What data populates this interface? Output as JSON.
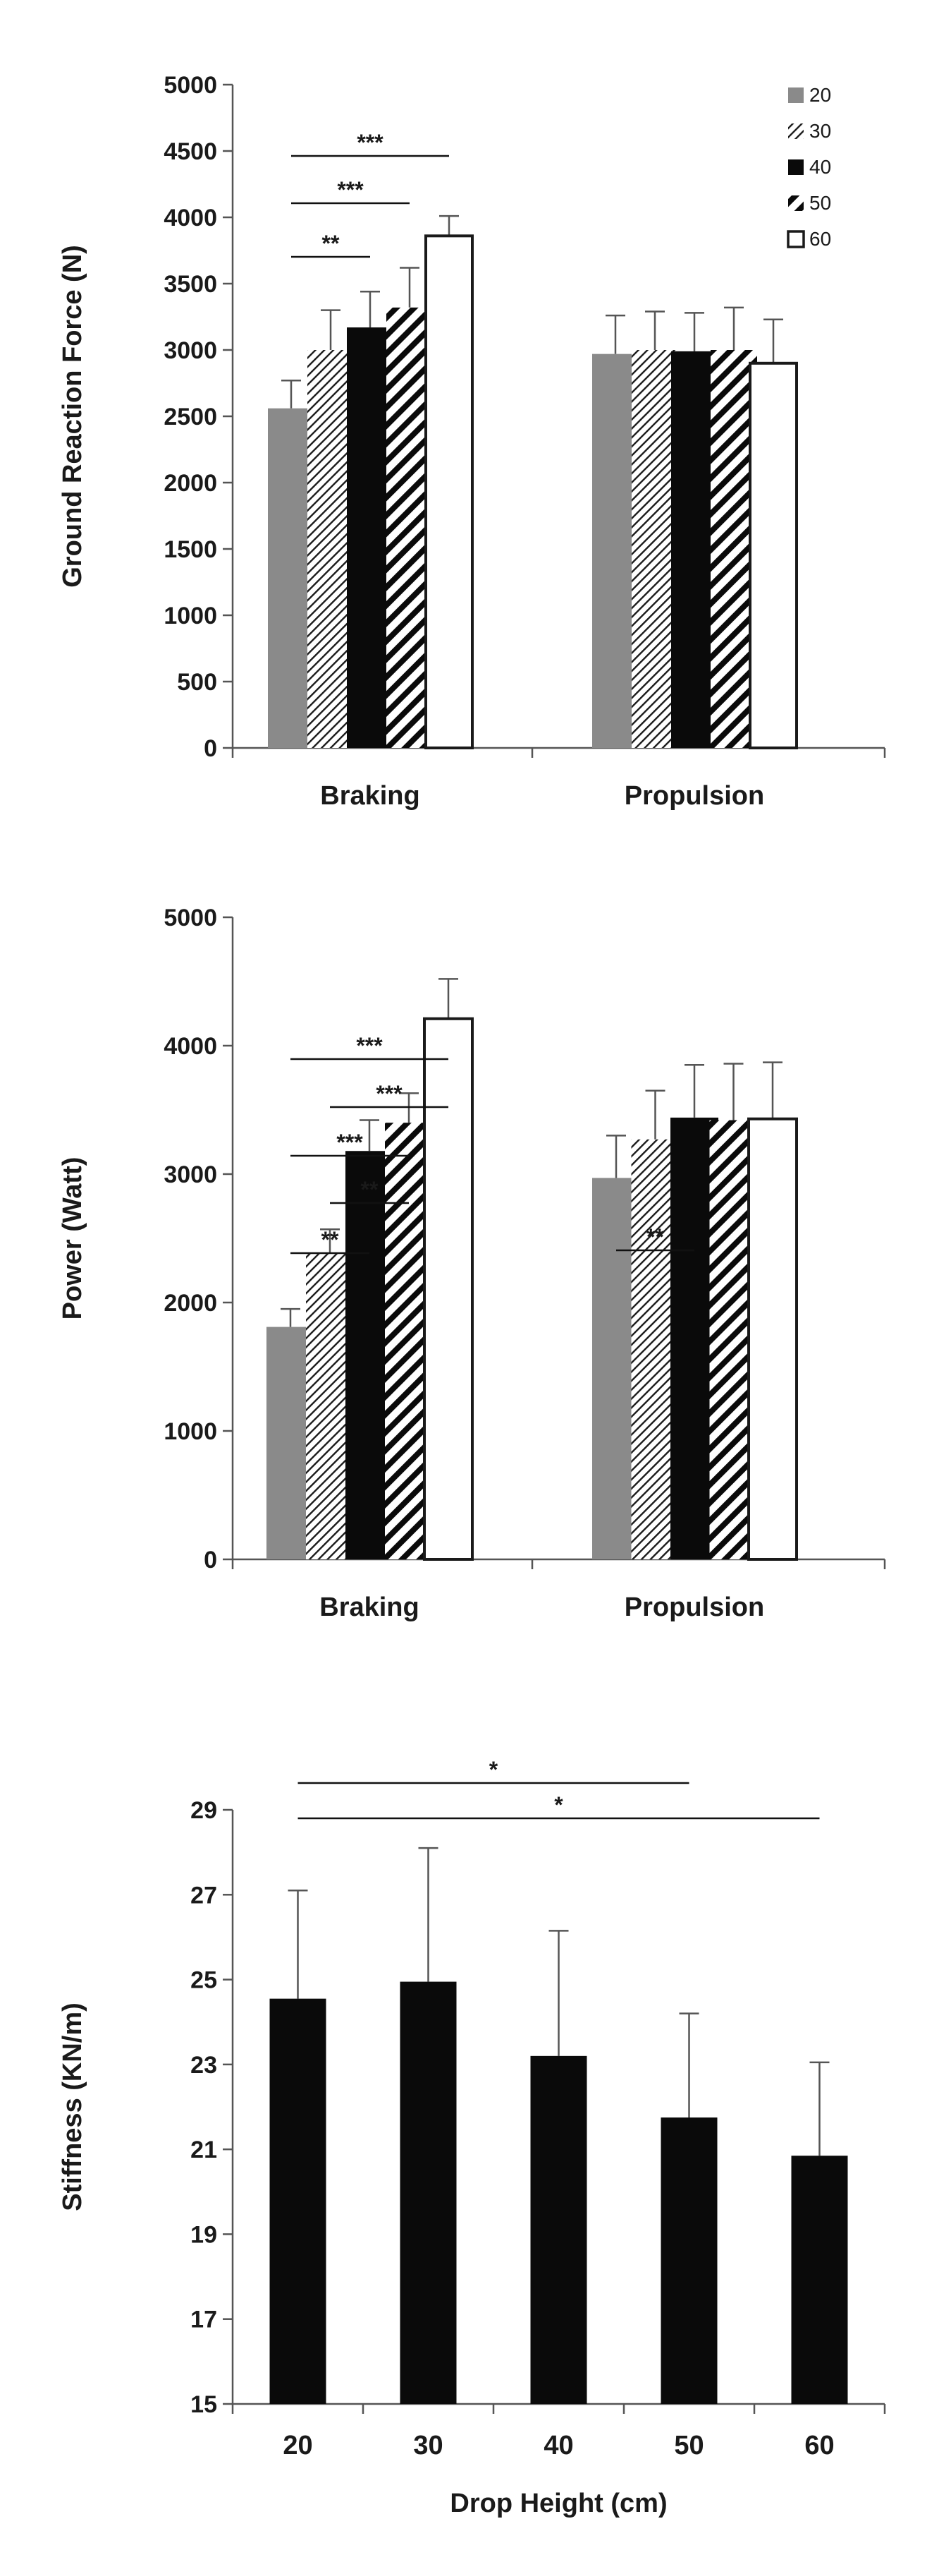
{
  "colors": {
    "h20": "#8a8a8a",
    "h40": "#0a0a0a",
    "h60": "#ffffff",
    "axis": "#555555",
    "stroke": "#1a1a1a"
  },
  "chart_data": [
    {
      "id": "grf",
      "type": "bar",
      "ylabel": "Ground Reaction Force  (N)",
      "xlabel": "",
      "ylim": [
        0,
        5000
      ],
      "yticks": [
        0,
        500,
        1000,
        1500,
        2000,
        2500,
        3000,
        3500,
        4000,
        4500,
        5000
      ],
      "categories": [
        "Braking",
        "Propulsion"
      ],
      "legend": {
        "position": "top-right",
        "entries": [
          "20",
          "30",
          "40",
          "50",
          "60"
        ]
      },
      "series": [
        {
          "name": "20",
          "values": [
            2560,
            2970
          ],
          "errors": [
            210,
            290
          ]
        },
        {
          "name": "30",
          "values": [
            3000,
            3000
          ],
          "errors": [
            300,
            290
          ]
        },
        {
          "name": "40",
          "values": [
            3170,
            2990
          ],
          "errors": [
            270,
            290
          ]
        },
        {
          "name": "50",
          "values": [
            3320,
            3000
          ],
          "errors": [
            300,
            320
          ]
        },
        {
          "name": "60",
          "values": [
            3860,
            2900
          ],
          "errors": [
            150,
            330
          ]
        }
      ],
      "significance": [
        {
          "from": 0,
          "to": 4,
          "category": 0,
          "label": "***"
        },
        {
          "from": 0,
          "to": 3,
          "category": 0,
          "label": "***"
        },
        {
          "from": 0,
          "to": 2,
          "category": 0,
          "label": "**"
        }
      ]
    },
    {
      "id": "power",
      "type": "bar",
      "ylabel": "Power (Watt)",
      "xlabel": "",
      "ylim": [
        0,
        5000
      ],
      "yticks": [
        0,
        1000,
        2000,
        3000,
        4000,
        5000
      ],
      "categories": [
        "Braking",
        "Propulsion"
      ],
      "series": [
        {
          "name": "20",
          "values": [
            1810,
            2970
          ],
          "errors": [
            140,
            330
          ]
        },
        {
          "name": "30",
          "values": [
            2390,
            3270
          ],
          "errors": [
            180,
            380
          ]
        },
        {
          "name": "40",
          "values": [
            3180,
            3440
          ],
          "errors": [
            240,
            410
          ]
        },
        {
          "name": "50",
          "values": [
            3400,
            3420
          ],
          "errors": [
            230,
            440
          ]
        },
        {
          "name": "60",
          "values": [
            4210,
            3430
          ],
          "errors": [
            310,
            440
          ]
        }
      ],
      "significance": [
        {
          "from": 0,
          "to": 4,
          "category": 0,
          "label": "***"
        },
        {
          "from": 1,
          "to": 4,
          "category": 0,
          "label": "***"
        },
        {
          "from": 0,
          "to": 3,
          "category": 0,
          "label": "***"
        },
        {
          "from": 1,
          "to": 3,
          "category": 0,
          "label": "**"
        },
        {
          "from": 0,
          "to": 2,
          "category": 0,
          "label": "**"
        },
        {
          "from": 0,
          "to": 2,
          "category": 1,
          "label": "**"
        }
      ]
    },
    {
      "id": "stiffness",
      "type": "bar",
      "ylabel": "Stiffness (KN/m)",
      "xlabel": "Drop Height (cm)",
      "ylim": [
        15,
        29
      ],
      "yticks": [
        15,
        17,
        19,
        21,
        23,
        25,
        27,
        29
      ],
      "categories": [
        "20",
        "30",
        "40",
        "50",
        "60"
      ],
      "series": [
        {
          "name": "Stiffness",
          "values": [
            24.55,
            24.95,
            23.2,
            21.75,
            20.85
          ],
          "errors": [
            2.55,
            3.15,
            2.95,
            2.45,
            2.2
          ]
        }
      ],
      "significance": [
        {
          "from": 0,
          "to": 3,
          "label": "*"
        },
        {
          "from": 0,
          "to": 4,
          "label": "*"
        }
      ]
    }
  ]
}
